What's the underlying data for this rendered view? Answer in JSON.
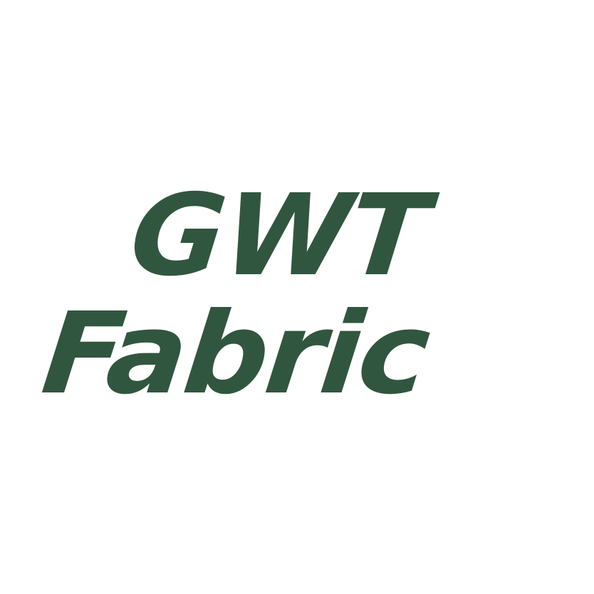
{
  "logo": {
    "line1": "GWT",
    "line2": "Fabric",
    "color": "#31563f",
    "background": "#ffffff"
  }
}
